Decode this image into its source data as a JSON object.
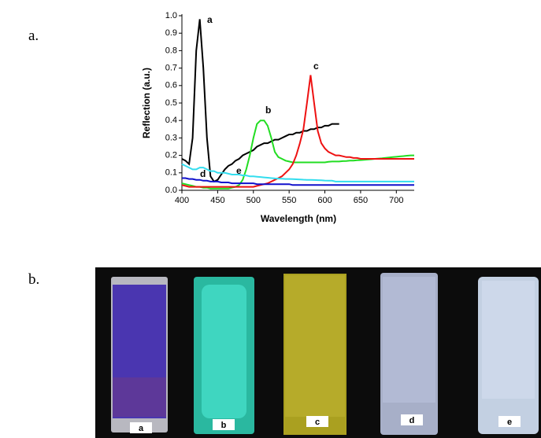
{
  "panel_labels": [
    "a.",
    "b."
  ],
  "chart_data": {
    "type": "line",
    "x_label": "Wavelength (nm)",
    "y_label": "Reflection (a.u.)",
    "xlim": [
      400,
      725
    ],
    "ylim": [
      0,
      1.0
    ],
    "xticks": [
      400,
      450,
      500,
      550,
      600,
      650,
      700
    ],
    "yticks": [
      {
        "value": 0,
        "label": "0.0"
      },
      0.1,
      0.2,
      0.3,
      0.4,
      0.5,
      0.6,
      0.7,
      0.8,
      0.9,
      {
        "value": 1,
        "label": "1.0"
      }
    ],
    "x": [
      400,
      405,
      410,
      415,
      420,
      425,
      430,
      435,
      440,
      445,
      450,
      455,
      460,
      465,
      470,
      475,
      480,
      485,
      490,
      495,
      500,
      505,
      510,
      515,
      520,
      525,
      530,
      535,
      540,
      545,
      550,
      555,
      560,
      565,
      570,
      575,
      580,
      585,
      590,
      595,
      600,
      605,
      610,
      615,
      620,
      625,
      630,
      635,
      640,
      645,
      650,
      655,
      660,
      665,
      670,
      675,
      680,
      685,
      690,
      695,
      700,
      705,
      710,
      715,
      720,
      725
    ],
    "series": [
      {
        "name": "a",
        "color": "#000000",
        "values": [
          0.18,
          0.17,
          0.15,
          0.3,
          0.8,
          0.98,
          0.7,
          0.3,
          0.08,
          0.05,
          0.06,
          0.09,
          0.12,
          0.14,
          0.15,
          0.17,
          0.18,
          0.2,
          0.21,
          0.22,
          0.23,
          0.25,
          0.26,
          0.27,
          0.27,
          0.28,
          0.29,
          0.29,
          0.3,
          0.31,
          0.32,
          0.32,
          0.33,
          0.33,
          0.34,
          0.34,
          0.35,
          0.35,
          0.36,
          0.36,
          0.37,
          0.37,
          0.38,
          0.38,
          0.38,
          null,
          null,
          null,
          null,
          null,
          null,
          null,
          null,
          null,
          null,
          null,
          null,
          null,
          null,
          null,
          null,
          null,
          null,
          null,
          null,
          null
        ]
      },
      {
        "name": "b",
        "color": "#22dd22",
        "values": [
          0.04,
          0.035,
          0.03,
          0.025,
          0.02,
          0.02,
          0.015,
          0.015,
          0.01,
          0.01,
          0.01,
          0.01,
          0.01,
          0.01,
          0.015,
          0.02,
          0.03,
          0.06,
          0.12,
          0.2,
          0.3,
          0.38,
          0.4,
          0.4,
          0.37,
          0.3,
          0.22,
          0.19,
          0.18,
          0.17,
          0.165,
          0.16,
          0.16,
          0.16,
          0.16,
          0.16,
          0.16,
          0.16,
          0.16,
          0.16,
          0.16,
          0.163,
          0.165,
          0.165,
          0.165,
          0.167,
          0.168,
          0.17,
          0.17,
          0.172,
          0.173,
          0.175,
          0.176,
          0.178,
          0.18,
          0.182,
          0.184,
          0.186,
          0.188,
          0.19,
          0.192,
          0.194,
          0.196,
          0.198,
          0.2,
          0.2
        ]
      },
      {
        "name": "c",
        "color": "#ee1111",
        "values": [
          0.03,
          0.025,
          0.02,
          0.02,
          0.02,
          0.02,
          0.02,
          0.02,
          0.02,
          0.02,
          0.02,
          0.02,
          0.02,
          0.02,
          0.02,
          0.02,
          0.02,
          0.02,
          0.02,
          0.02,
          0.02,
          0.025,
          0.03,
          0.035,
          0.04,
          0.05,
          0.06,
          0.07,
          0.08,
          0.1,
          0.12,
          0.15,
          0.2,
          0.27,
          0.35,
          0.5,
          0.66,
          0.5,
          0.34,
          0.27,
          0.24,
          0.22,
          0.21,
          0.2,
          0.2,
          0.195,
          0.19,
          0.19,
          0.185,
          0.185,
          0.18,
          0.18,
          0.18,
          0.18,
          0.18,
          0.18,
          0.18,
          0.18,
          0.18,
          0.18,
          0.18,
          0.18,
          0.18,
          0.18,
          0.18,
          0.18
        ]
      },
      {
        "name": "d",
        "color": "#1010cc",
        "values": [
          0.07,
          0.07,
          0.065,
          0.065,
          0.06,
          0.06,
          0.055,
          0.055,
          0.05,
          0.05,
          0.05,
          0.045,
          0.045,
          0.045,
          0.04,
          0.04,
          0.04,
          0.04,
          0.04,
          0.04,
          0.04,
          0.035,
          0.035,
          0.035,
          0.035,
          0.035,
          0.035,
          0.035,
          0.035,
          0.035,
          0.035,
          0.03,
          0.03,
          0.03,
          0.03,
          0.03,
          0.03,
          0.03,
          0.03,
          0.03,
          0.03,
          0.03,
          0.03,
          0.03,
          0.03,
          0.03,
          0.03,
          0.03,
          0.03,
          0.03,
          0.03,
          0.03,
          0.03,
          0.03,
          0.03,
          0.03,
          0.03,
          0.03,
          0.03,
          0.03,
          0.03,
          0.03,
          0.03,
          0.03,
          0.03,
          0.03
        ]
      },
      {
        "name": "e",
        "color": "#33ddee",
        "values": [
          0.15,
          0.14,
          0.13,
          0.12,
          0.12,
          0.13,
          0.13,
          0.12,
          0.11,
          0.11,
          0.1,
          0.1,
          0.1,
          0.095,
          0.09,
          0.09,
          0.09,
          0.085,
          0.085,
          0.08,
          0.08,
          0.078,
          0.076,
          0.074,
          0.072,
          0.07,
          0.068,
          0.067,
          0.066,
          0.065,
          0.065,
          0.064,
          0.063,
          0.062,
          0.061,
          0.06,
          0.06,
          0.059,
          0.058,
          0.057,
          0.056,
          0.055,
          0.055,
          0.05,
          0.05,
          0.05,
          0.05,
          0.05,
          0.05,
          0.05,
          0.05,
          0.05,
          0.05,
          0.05,
          0.05,
          0.05,
          0.05,
          0.05,
          0.05,
          0.05,
          0.05,
          0.05,
          0.05,
          0.05,
          0.05,
          0.05
        ]
      }
    ]
  },
  "photos": {
    "labels": [
      "a",
      "b",
      "c",
      "d",
      "e"
    ]
  }
}
